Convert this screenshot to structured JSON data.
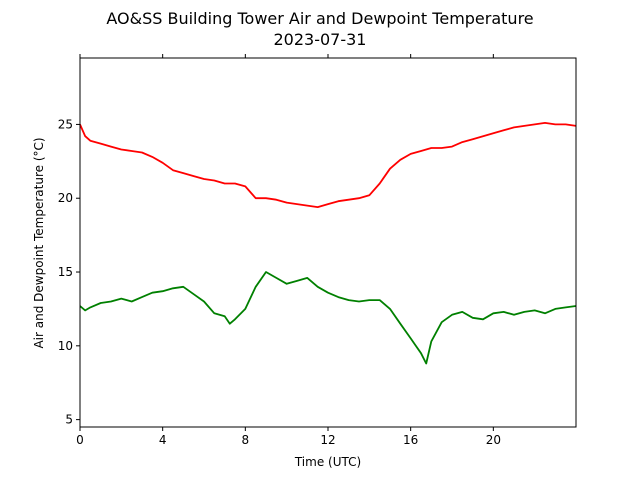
{
  "chart_data": {
    "type": "line",
    "title": "AO&SS Building Tower Air and Dewpoint Temperature",
    "subtitle": "2023-07-31",
    "xlabel": "Time (UTC)",
    "ylabel": "Air and Dewpoint Temperature (°C)",
    "xlim": [
      0,
      24
    ],
    "ylim": [
      4.5,
      29.5
    ],
    "xticks": [
      0,
      4,
      8,
      12,
      16,
      20
    ],
    "yticks": [
      5,
      10,
      15,
      20,
      25
    ],
    "grid": false,
    "legend": "none",
    "series": [
      {
        "color": "#ff0000",
        "x": [
          0,
          0.25,
          0.5,
          1,
          1.5,
          2,
          2.5,
          3,
          3.5,
          4,
          4.5,
          5,
          5.5,
          6,
          6.5,
          7,
          7.5,
          8,
          8.5,
          9,
          9.5,
          10,
          10.5,
          11,
          11.5,
          12,
          12.5,
          13,
          13.5,
          14,
          14.5,
          15,
          15.5,
          16,
          16.5,
          17,
          17.5,
          18,
          18.5,
          19,
          19.5,
          20,
          20.5,
          21,
          21.5,
          22,
          22.5,
          23,
          23.5,
          24
        ],
        "y": [
          25.0,
          24.2,
          23.9,
          23.7,
          23.5,
          23.3,
          23.2,
          23.1,
          22.8,
          22.4,
          21.9,
          21.7,
          21.5,
          21.3,
          21.2,
          21.0,
          21.0,
          20.8,
          20.0,
          20.0,
          19.9,
          19.7,
          19.6,
          19.5,
          19.4,
          19.6,
          19.8,
          19.9,
          20.0,
          20.2,
          21.0,
          22.0,
          22.6,
          23.0,
          23.2,
          23.4,
          23.4,
          23.5,
          23.8,
          24.0,
          24.2,
          24.4,
          24.6,
          24.8,
          24.9,
          25.0,
          25.1,
          25.0,
          25.0,
          24.9
        ]
      },
      {
        "color": "#008000",
        "x": [
          0,
          0.25,
          0.5,
          1,
          1.5,
          2,
          2.5,
          3,
          3.5,
          4,
          4.5,
          5,
          5.5,
          6,
          6.5,
          7,
          7.25,
          7.5,
          8,
          8.5,
          9,
          9.5,
          10,
          10.5,
          11,
          11.5,
          12,
          12.5,
          13,
          13.5,
          14,
          14.5,
          15,
          15.5,
          16,
          16.25,
          16.5,
          16.75,
          17,
          17.5,
          18,
          18.5,
          19,
          19.5,
          20,
          20.5,
          21,
          21.5,
          22,
          22.5,
          23,
          23.5,
          24
        ],
        "y": [
          12.7,
          12.4,
          12.6,
          12.9,
          13.0,
          13.2,
          13.0,
          13.3,
          13.6,
          13.7,
          13.9,
          14.0,
          13.5,
          13.0,
          12.2,
          12.0,
          11.5,
          11.8,
          12.5,
          14.0,
          15.0,
          14.6,
          14.2,
          14.4,
          14.6,
          14.0,
          13.6,
          13.3,
          13.1,
          13.0,
          13.1,
          13.1,
          12.5,
          11.5,
          10.5,
          10.0,
          9.5,
          8.8,
          10.3,
          11.6,
          12.1,
          12.3,
          11.9,
          11.8,
          12.2,
          12.3,
          12.1,
          12.3,
          12.4,
          12.2,
          12.5,
          12.6,
          12.7
        ]
      }
    ]
  }
}
